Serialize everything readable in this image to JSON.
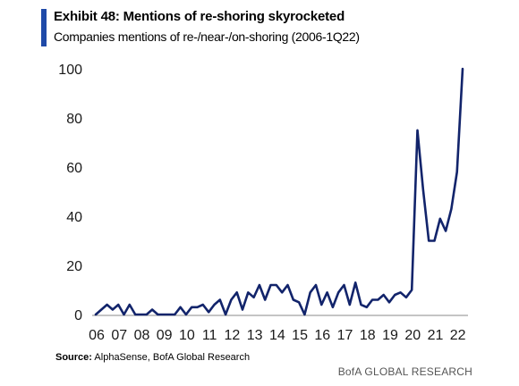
{
  "header": {
    "title": "Exhibit 48: Mentions of re-shoring skyrocketed",
    "subtitle": "Companies mentions of re-/near-/on-shoring (2006-1Q22)",
    "accent_color": "#1f4aa8"
  },
  "chart_data": {
    "type": "line",
    "title": "Exhibit 48: Mentions of re-shoring skyrocketed",
    "subtitle": "Companies mentions of re-/near-/on-shoring (2006-1Q22)",
    "xlabel": "",
    "ylabel": "",
    "ylim": [
      0,
      100
    ],
    "y_ticks": [
      0,
      20,
      40,
      60,
      80,
      100
    ],
    "x_ticks": [
      "06",
      "07",
      "08",
      "09",
      "10",
      "11",
      "12",
      "13",
      "14",
      "15",
      "16",
      "17",
      "18",
      "19",
      "20",
      "21",
      "22"
    ],
    "grid": false,
    "legend": "none",
    "line_color": "#12246b",
    "series": [
      {
        "x": [
          2006.0,
          2006.25,
          2006.5,
          2006.75,
          2007.0,
          2007.25,
          2007.5,
          2007.75,
          2008.0,
          2008.25,
          2008.5,
          2008.75,
          2009.0,
          2009.25,
          2009.5,
          2009.75,
          2010.0,
          2010.25,
          2010.5,
          2010.75,
          2011.0,
          2011.25,
          2011.5,
          2011.75,
          2012.0,
          2012.25,
          2012.5,
          2012.75,
          2013.0,
          2013.25,
          2013.5,
          2013.75,
          2014.0,
          2014.25,
          2014.5,
          2014.75,
          2015.0,
          2015.25,
          2015.5,
          2015.75,
          2016.0,
          2016.25,
          2016.5,
          2016.75,
          2017.0,
          2017.25,
          2017.5,
          2017.75,
          2018.0,
          2018.25,
          2018.5,
          2018.75,
          2019.0,
          2019.25,
          2019.5,
          2019.75,
          2020.0,
          2020.25,
          2020.5,
          2020.75,
          2021.0,
          2021.25,
          2021.5,
          2021.75,
          2022.0,
          2022.25
        ],
        "values": [
          0,
          2,
          4,
          2,
          4,
          0,
          4,
          0,
          0,
          0,
          2,
          0,
          0,
          0,
          0,
          3,
          0,
          3,
          3,
          4,
          1,
          4,
          6,
          0,
          6,
          9,
          2,
          9,
          7,
          12,
          6,
          12,
          12,
          9,
          12,
          6,
          5,
          0,
          9,
          12,
          4,
          9,
          3,
          9,
          12,
          4,
          13,
          4,
          3,
          6,
          6,
          8,
          5,
          8,
          9,
          7,
          10,
          75,
          51,
          30,
          30,
          39,
          34,
          43,
          58,
          100
        ]
      }
    ]
  },
  "footer": {
    "source_label": "Source:",
    "source_text": "AlphaSense, BofA Global Research",
    "brand": "BofA GLOBAL RESEARCH"
  }
}
